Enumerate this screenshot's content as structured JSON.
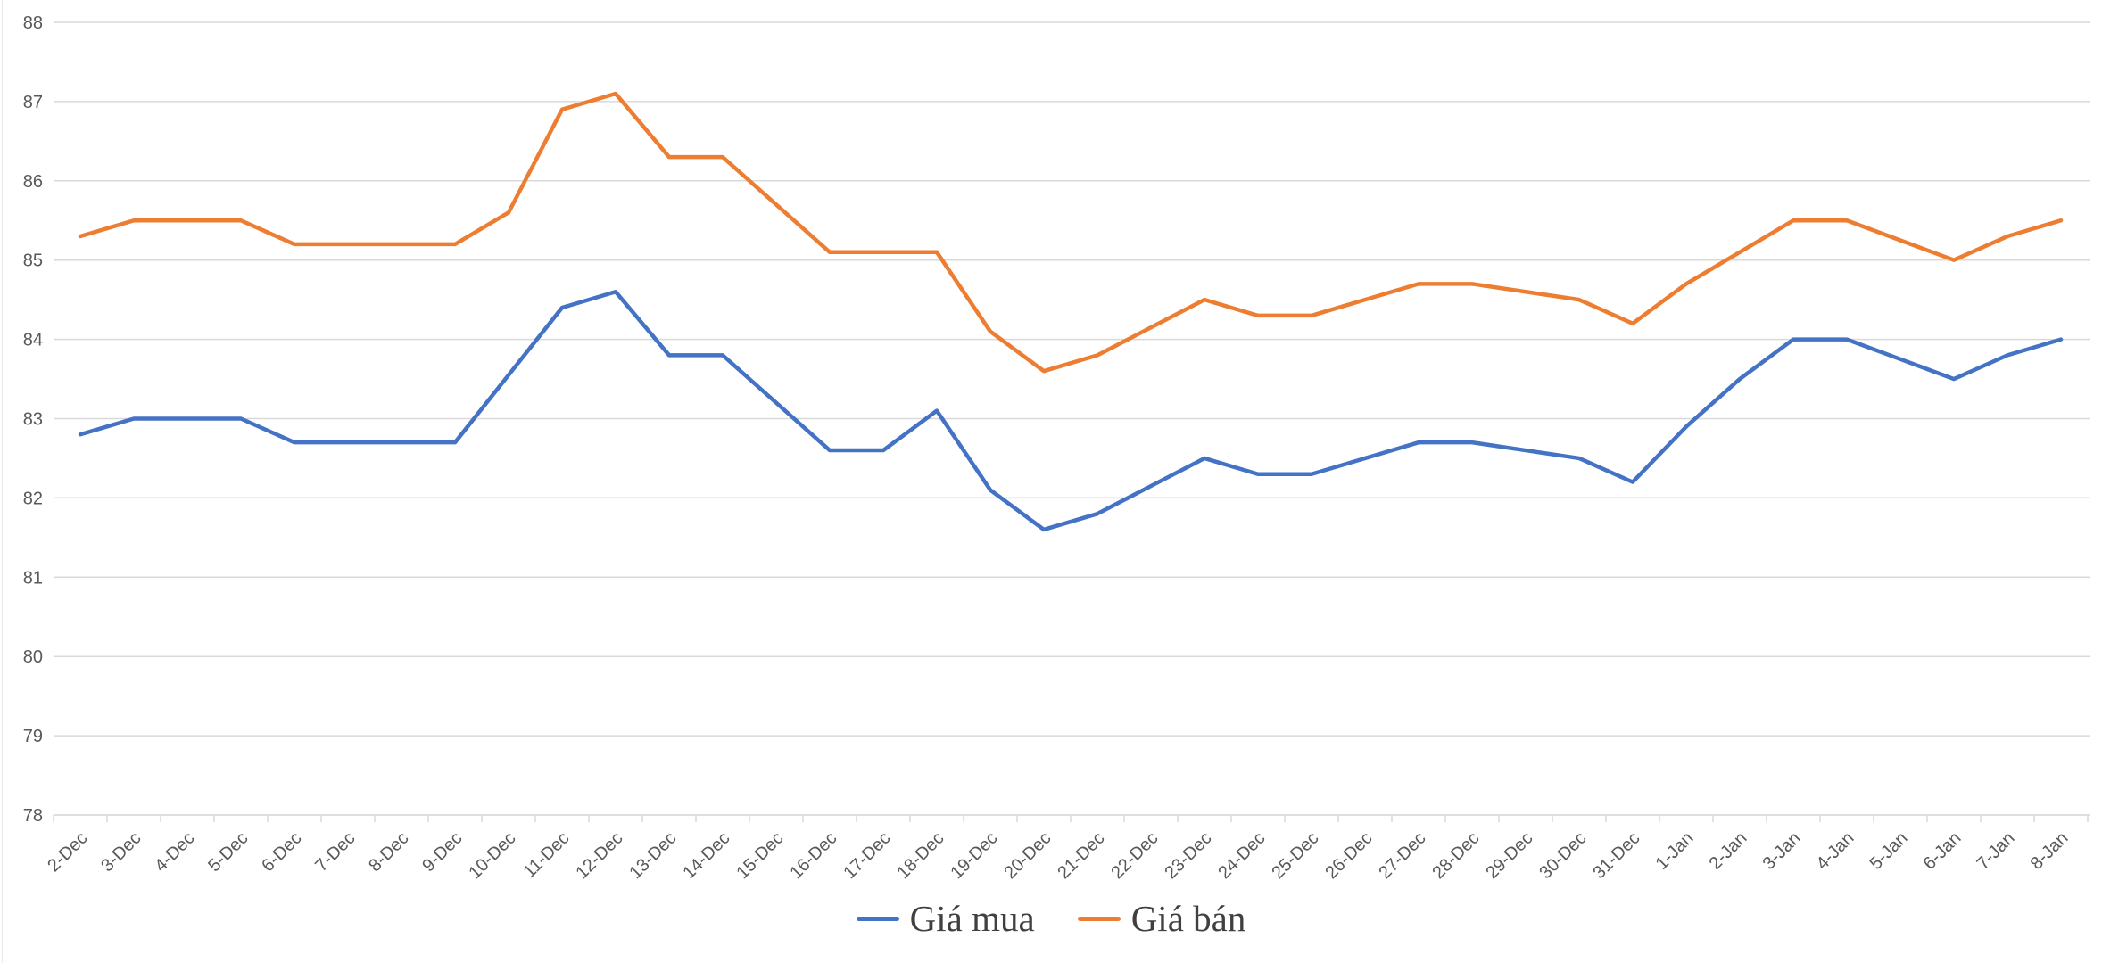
{
  "chart_data": {
    "type": "line",
    "title": "",
    "categories": [
      "2-Dec",
      "3-Dec",
      "4-Dec",
      "5-Dec",
      "6-Dec",
      "7-Dec",
      "8-Dec",
      "9-Dec",
      "10-Dec",
      "11-Dec",
      "12-Dec",
      "13-Dec",
      "14-Dec",
      "15-Dec",
      "16-Dec",
      "17-Dec",
      "18-Dec",
      "19-Dec",
      "20-Dec",
      "21-Dec",
      "22-Dec",
      "23-Dec",
      "24-Dec",
      "25-Dec",
      "26-Dec",
      "27-Dec",
      "28-Dec",
      "29-Dec",
      "30-Dec",
      "31-Dec",
      "1-Jan",
      "2-Jan",
      "3-Jan",
      "4-Jan",
      "5-Jan",
      "6-Jan",
      "7-Jan",
      "8-Jan"
    ],
    "series": [
      {
        "name": "Giá mua",
        "color": "#4472C4",
        "values": [
          82.8,
          83,
          83,
          83,
          82.7,
          82.7,
          82.7,
          82.7,
          83.55,
          84.4,
          84.6,
          83.8,
          83.8,
          83.2,
          82.6,
          82.6,
          83.1,
          82.1,
          81.6,
          81.8,
          82.15,
          82.5,
          82.3,
          82.3,
          82.5,
          82.7,
          82.7,
          82.6,
          82.5,
          82.2,
          82.9,
          83.5,
          84,
          84,
          83.75,
          83.5,
          83.8,
          84
        ]
      },
      {
        "name": "Giá bán",
        "color": "#ED7D31",
        "values": [
          85.3,
          85.5,
          85.5,
          85.5,
          85.2,
          85.2,
          85.2,
          85.2,
          85.6,
          86.9,
          87.1,
          86.3,
          86.3,
          85.7,
          85.1,
          85.1,
          85.1,
          84.1,
          83.6,
          83.8,
          84.15,
          84.5,
          84.3,
          84.3,
          84.5,
          84.7,
          84.7,
          84.6,
          84.5,
          84.2,
          84.7,
          85.1,
          85.5,
          85.5,
          85.25,
          85,
          85.3,
          85.5
        ]
      }
    ],
    "xlabel": "",
    "ylabel": "",
    "ylim": [
      78,
      88
    ],
    "y_ticks": [
      78,
      79,
      80,
      81,
      82,
      83,
      84,
      85,
      86,
      87,
      88
    ],
    "grid": true,
    "legend_position": "bottom",
    "line_width": 4.5,
    "grid_color": "#D9D9D9",
    "axis_text_color": "#595959",
    "legend_text_color": "#404040",
    "background": "#FFFFFF"
  },
  "legend": {
    "items": [
      {
        "label": "Giá mua",
        "color": "#4472C4"
      },
      {
        "label": "Giá bán",
        "color": "#ED7D31"
      }
    ]
  }
}
